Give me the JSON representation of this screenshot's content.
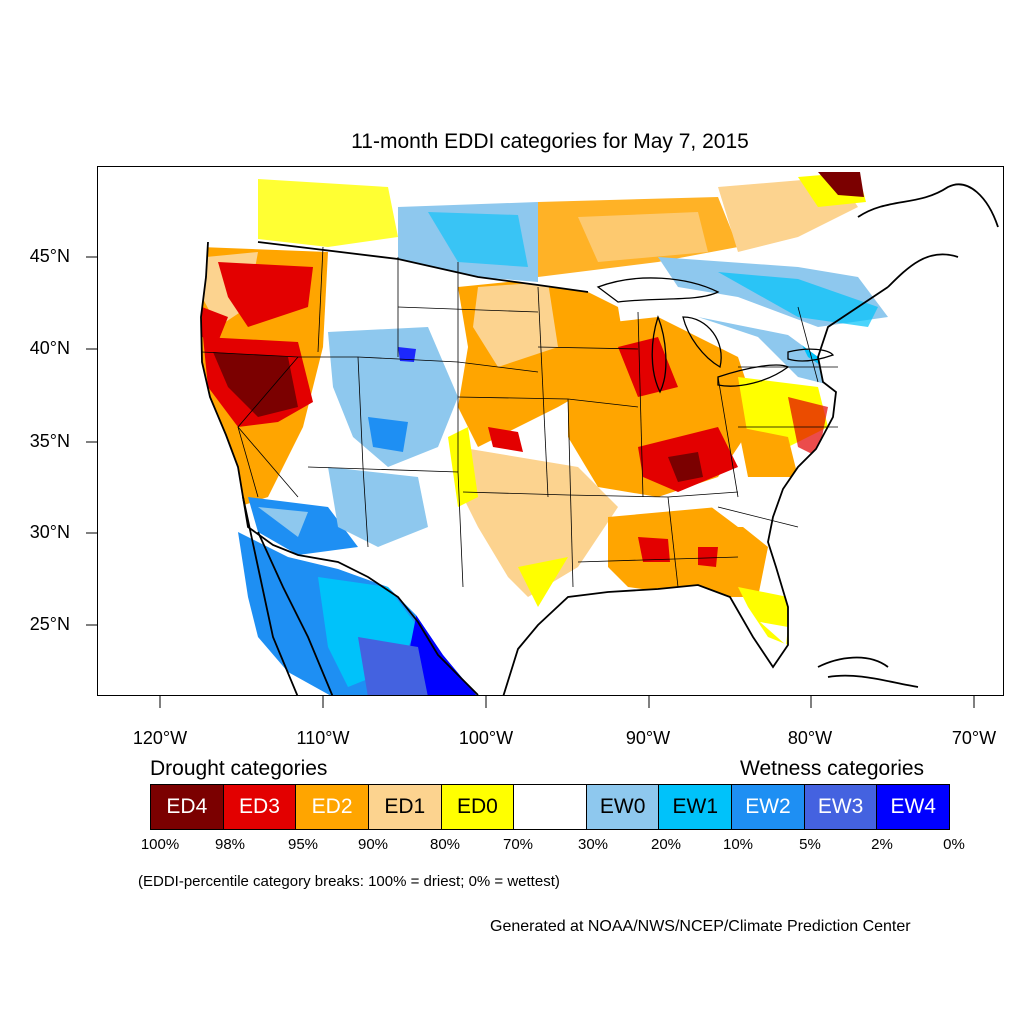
{
  "title": "11-month EDDI categories for May 7, 2015",
  "map": {
    "latitude_labels": [
      "45°N",
      "40°N",
      "35°N",
      "30°N",
      "25°N"
    ],
    "longitude_labels": [
      "120°W",
      "110°W",
      "100°W",
      "90°W",
      "80°W",
      "70°W"
    ],
    "colors": {
      "ED4": "#7b0000",
      "ED3": "#e30000",
      "ED2": "#ffa500",
      "ED1": "#fcd38f",
      "ED0": "#ffff00",
      "neutral": "#ffffff",
      "EW0": "#8ec8ee",
      "EW1": "#00c2fa",
      "EW2": "#1e8ff3",
      "EW3": "#4462e0",
      "EW4": "#0000ff"
    }
  },
  "legend": {
    "drought_heading": "Drought categories",
    "wetness_heading": "Wetness categories",
    "categories": [
      {
        "label": "ED4",
        "color": "#7b0000",
        "text_color": "#ffffff"
      },
      {
        "label": "ED3",
        "color": "#e30000",
        "text_color": "#ffffff"
      },
      {
        "label": "ED2",
        "color": "#ffa500",
        "text_color": "#ffffff"
      },
      {
        "label": "ED1",
        "color": "#fcd38f",
        "text_color": "#000000"
      },
      {
        "label": "ED0",
        "color": "#ffff00",
        "text_color": "#000000"
      },
      {
        "label": "",
        "color": "#ffffff",
        "text_color": "#000000"
      },
      {
        "label": "EW0",
        "color": "#8ec8ee",
        "text_color": "#000000"
      },
      {
        "label": "EW1",
        "color": "#00c2fa",
        "text_color": "#000000"
      },
      {
        "label": "EW2",
        "color": "#1e8ff3",
        "text_color": "#ffffff"
      },
      {
        "label": "EW3",
        "color": "#4462e0",
        "text_color": "#ffffff"
      },
      {
        "label": "EW4",
        "color": "#0000ff",
        "text_color": "#ffffff"
      }
    ],
    "breaks": [
      "100%",
      "98%",
      "95%",
      "90%",
      "80%",
      "70%",
      "30%",
      "20%",
      "10%",
      "5%",
      "2%",
      "0%"
    ]
  },
  "note": "(EDDI-percentile category breaks: 100% = driest; 0% = wettest)",
  "credit": "Generated at NOAA/NWS/NCEP/Climate Prediction Center"
}
